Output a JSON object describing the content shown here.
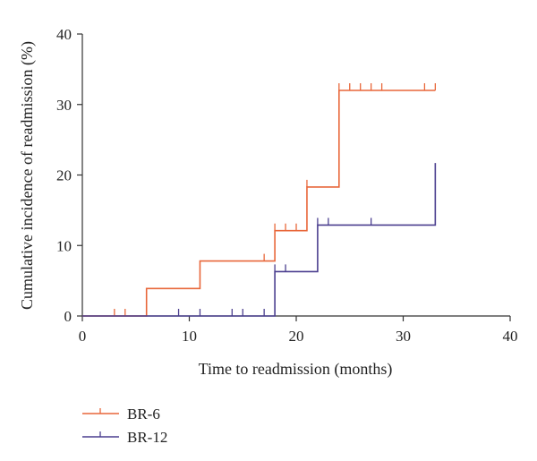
{
  "chart_data": {
    "type": "line",
    "step": true,
    "xlabel": "Time to readmission (months)",
    "ylabel": "Cumulative incidence of readmission (%)",
    "xlim": [
      0,
      40
    ],
    "ylim": [
      0,
      40
    ],
    "xticks": [
      0,
      10,
      20,
      30,
      40
    ],
    "yticks": [
      0,
      10,
      20,
      30,
      40
    ],
    "grid": false,
    "legend_position": "bottom-left",
    "series": [
      {
        "name": "BR-6",
        "color": "#e8673a",
        "steps": [
          [
            0,
            0
          ],
          [
            6,
            3.9
          ],
          [
            11,
            7.8
          ],
          [
            18,
            12.1
          ],
          [
            21,
            18.3
          ],
          [
            24,
            32.0
          ],
          [
            33,
            32.0
          ]
        ],
        "censored": [
          3,
          4,
          17,
          18,
          19,
          20,
          21,
          24,
          25,
          26,
          27,
          28,
          32,
          33
        ]
      },
      {
        "name": "BR-12",
        "color": "#4b3f8f",
        "steps": [
          [
            0,
            0
          ],
          [
            6,
            0
          ],
          [
            18,
            6.3
          ],
          [
            22,
            12.9
          ],
          [
            33,
            21.7
          ]
        ],
        "censored": [
          9,
          11,
          14,
          15,
          17,
          18,
          19,
          22,
          23,
          27
        ]
      }
    ]
  }
}
